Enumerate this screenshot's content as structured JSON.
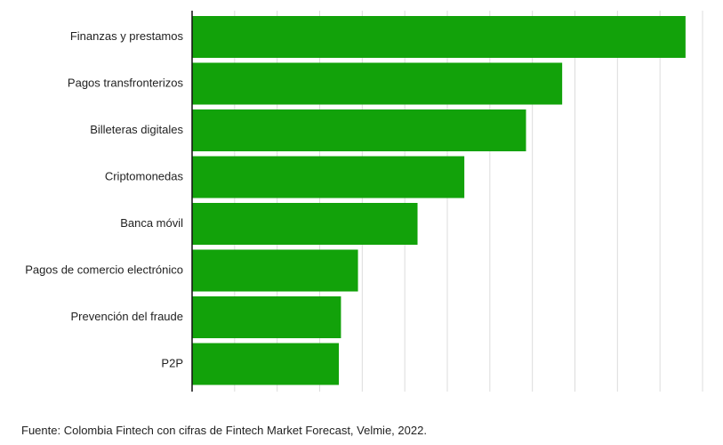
{
  "chart_data": {
    "type": "bar",
    "orientation": "horizontal",
    "categories": [
      "Finanzas y prestamos",
      "Pagos transfronterizos",
      "Billeteras digitales",
      "Criptomonedas",
      "Banca móvil",
      "Pagos de comercio electrónico",
      "Prevención del fraude",
      "P2P"
    ],
    "values": [
      11.6,
      8.7,
      7.85,
      6.4,
      5.3,
      3.9,
      3.5,
      3.45
    ],
    "xlim": [
      0,
      12
    ],
    "grid": true,
    "bar_color": "#12a20a",
    "grid_color": "#dcdcdc",
    "axis_color": "#111111"
  },
  "source": "Fuente: Colombia Fintech con cifras de Fintech Market Forecast, Velmie, 2022."
}
